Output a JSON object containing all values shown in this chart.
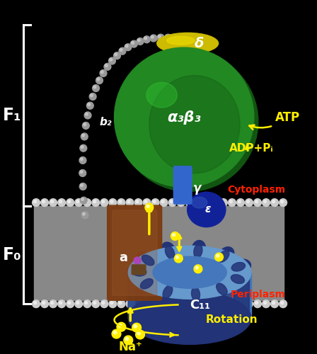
{
  "bg_color": "#000000",
  "f1_label": "F₁",
  "f0_label": "F₀",
  "alpha3beta3_label": "α₃β₃",
  "delta_label": "δ",
  "gamma_label": "γ",
  "epsilon_label": "ε",
  "b2_label": "b₂",
  "a_label": "a",
  "c11_label": "C₁₁",
  "atp_label": "ATP",
  "adp_label": "ADP+Pᵢ",
  "cytoplasm_label": "Cytoplasm",
  "periplasm_label": "Periplasm",
  "na_label": "Na⁺",
  "rotation_label": "Rotation",
  "label_color_white": "#ffffff",
  "label_color_yellow": "#ffee00",
  "label_color_red": "#ff2200",
  "green_dark": "#115511",
  "green_mid": "#228822",
  "green_bright": "#33cc33",
  "yellow_cap": "#ccbb00",
  "yellow_cap_bright": "#eedd00",
  "blue_rotor": "#4477bb",
  "blue_rotor_dark": "#223377",
  "blue_rotor_light": "#6699cc",
  "blue_stalk": "#3366cc",
  "dark_blue_eps": "#112299",
  "brown_a": "#7B3A10",
  "brown_a_light": "#9B5A30",
  "membrane_gray": "#888888",
  "membrane_light": "#aaaaaa",
  "bead_dark": "#666666",
  "bead_mid": "#999999",
  "bead_light": "#cccccc"
}
